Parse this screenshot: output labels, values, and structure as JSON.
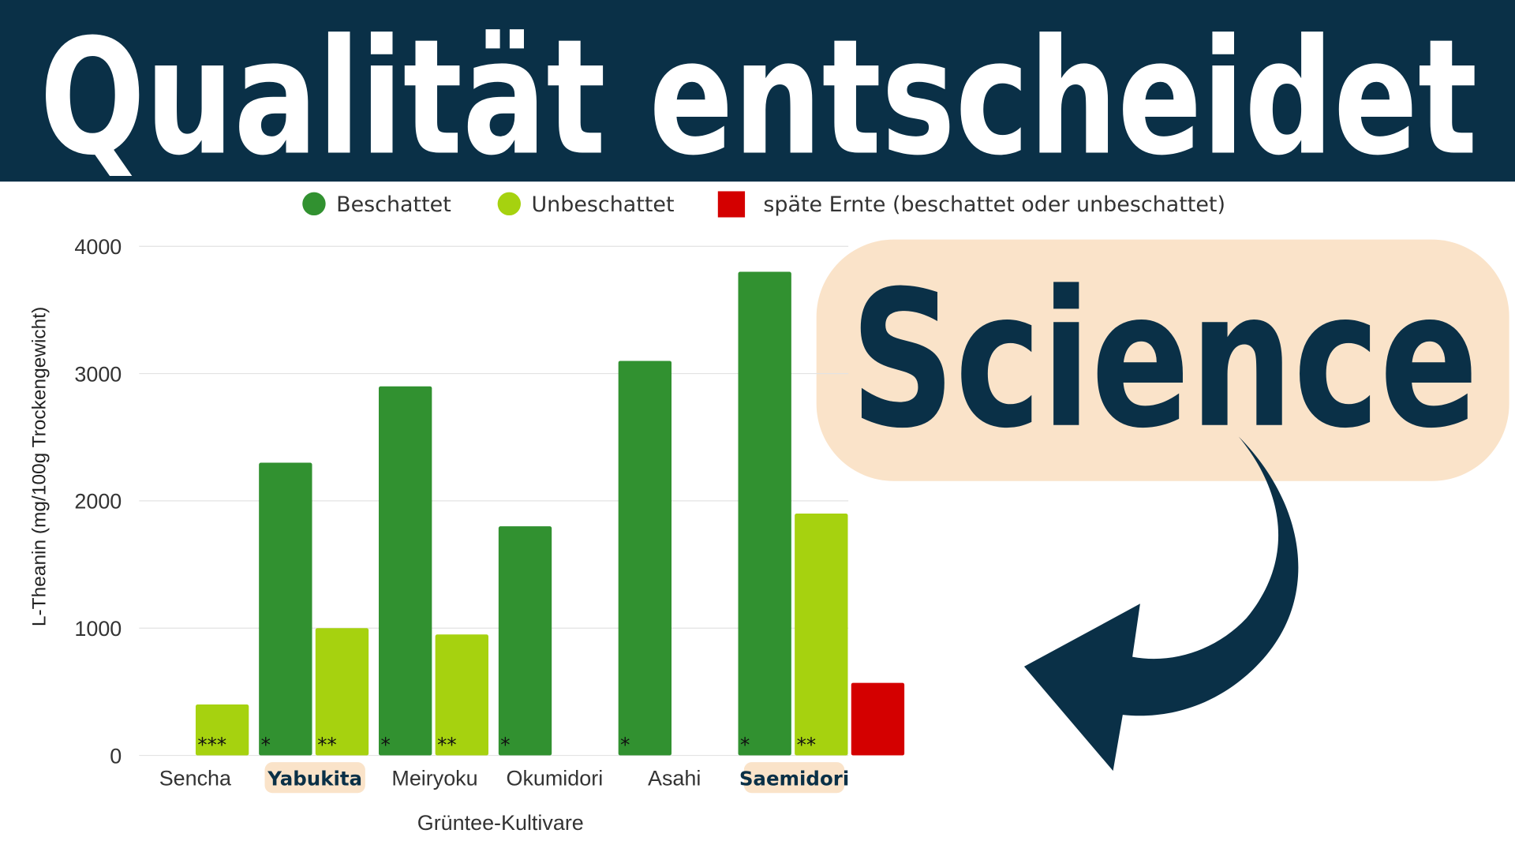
{
  "header": {
    "title": "Qualität entscheidet"
  },
  "badge": {
    "label": "Science"
  },
  "chart_data": {
    "type": "bar",
    "categories": [
      "Sencha",
      "Yabukita",
      "Meiryoku",
      "Okumidori",
      "Asahi",
      "Saemidori"
    ],
    "highlight": [
      false,
      true,
      false,
      false,
      false,
      true
    ],
    "series": [
      {
        "name": "Beschattet",
        "color": "#319130",
        "values": [
          null,
          2300,
          2900,
          1800,
          3100,
          3800
        ],
        "annotations": [
          null,
          "*",
          "*",
          "*",
          "*",
          "*"
        ]
      },
      {
        "name": "Unbeschattet",
        "color": "#a6d20f",
        "values": [
          400,
          1000,
          950,
          null,
          null,
          1900
        ],
        "annotations": [
          "***",
          "**",
          "**",
          null,
          null,
          "**"
        ]
      },
      {
        "name": "späte Ernte (beschattet oder unbeschattet)",
        "color": "#d40000",
        "values": [
          null,
          null,
          null,
          null,
          null,
          570
        ],
        "annotations": [
          null,
          null,
          null,
          null,
          null,
          null
        ]
      }
    ],
    "ylim": [
      0,
      4000
    ],
    "yticks": [
      0,
      1000,
      2000,
      3000,
      4000
    ],
    "grid": true,
    "y_label": "L-Theanin (mg/100g Trockengewicht)",
    "x_label": "Grüntee-Kultivare"
  }
}
